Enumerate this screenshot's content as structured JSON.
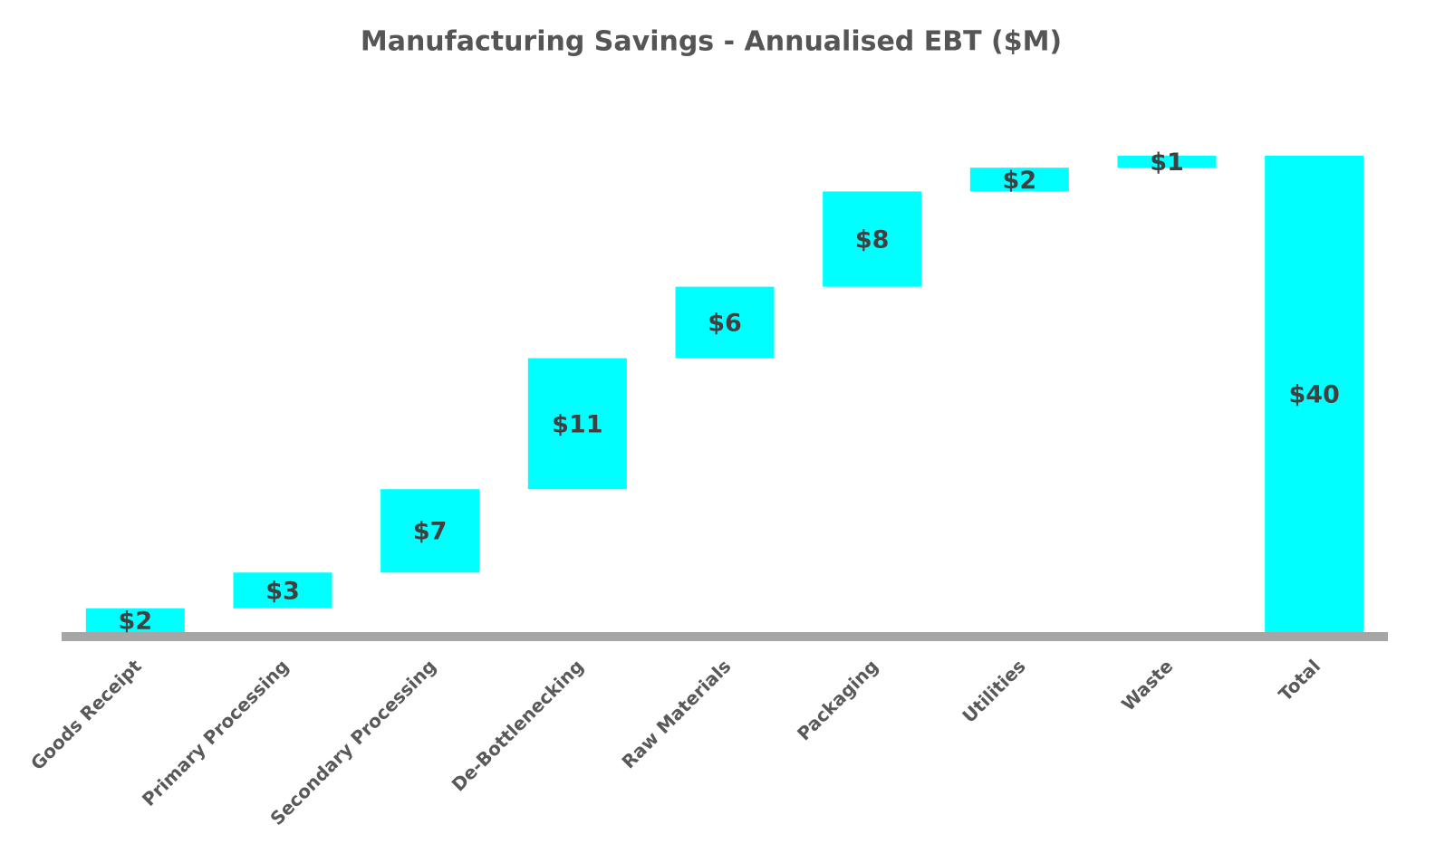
{
  "chart_data": {
    "type": "waterfall",
    "title": "Manufacturing Savings - Annualised EBT ($M)",
    "categories": [
      "Goods Receipt",
      "Primary Processing",
      "Secondary Processing",
      "De-Bottlenecking",
      "Raw Materials",
      "Packaging",
      "Utilities",
      "Waste",
      "Total"
    ],
    "values": [
      2,
      3,
      7,
      11,
      6,
      8,
      2,
      1,
      40
    ],
    "value_labels": [
      "$2",
      "$3",
      "$7",
      "$11",
      "$6",
      "$8",
      "$2",
      "$1",
      "$40"
    ],
    "color": "#00ffff"
  }
}
